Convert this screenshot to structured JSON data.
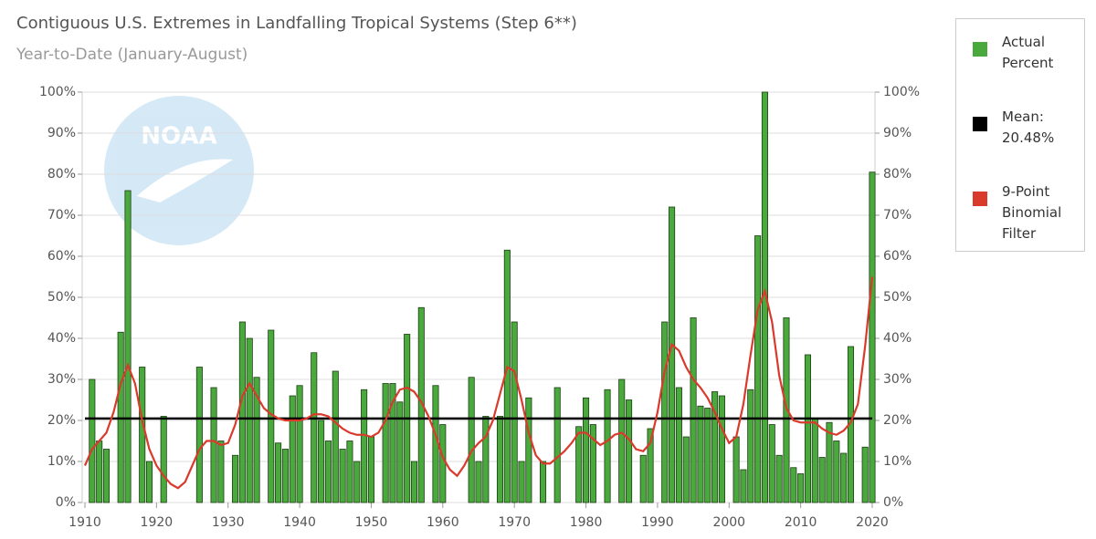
{
  "chart_data": {
    "type": "bar",
    "title": "Contiguous U.S. Extremes in Landfalling Tropical Systems (Step 6**)",
    "subtitle": "Year-to-Date (January-August)",
    "logo_text": "NOAA",
    "x": [
      1910,
      1911,
      1912,
      1913,
      1914,
      1915,
      1916,
      1917,
      1918,
      1919,
      1920,
      1921,
      1922,
      1923,
      1924,
      1925,
      1926,
      1927,
      1928,
      1929,
      1930,
      1931,
      1932,
      1933,
      1934,
      1935,
      1936,
      1937,
      1938,
      1939,
      1940,
      1941,
      1942,
      1943,
      1944,
      1945,
      1946,
      1947,
      1948,
      1949,
      1950,
      1951,
      1952,
      1953,
      1954,
      1955,
      1956,
      1957,
      1958,
      1959,
      1960,
      1961,
      1962,
      1963,
      1964,
      1965,
      1966,
      1967,
      1968,
      1969,
      1970,
      1971,
      1972,
      1973,
      1974,
      1975,
      1976,
      1977,
      1978,
      1979,
      1980,
      1981,
      1982,
      1983,
      1984,
      1985,
      1986,
      1987,
      1988,
      1989,
      1990,
      1991,
      1992,
      1993,
      1994,
      1995,
      1996,
      1997,
      1998,
      1999,
      2000,
      2001,
      2002,
      2003,
      2004,
      2005,
      2006,
      2007,
      2008,
      2009,
      2010,
      2011,
      2012,
      2013,
      2014,
      2015,
      2016,
      2017,
      2018,
      2019,
      2020
    ],
    "series": [
      {
        "name": "Actual Percent",
        "type": "bar",
        "color": "#4aa93c",
        "values": [
          null,
          30,
          15,
          13,
          0,
          41.5,
          76,
          0,
          33,
          10,
          0,
          21,
          0,
          0,
          0,
          0,
          33,
          0,
          28,
          15,
          0,
          11.5,
          44,
          40,
          30.5,
          0,
          42,
          14.5,
          13,
          26,
          28.5,
          0,
          36.5,
          20,
          15,
          32,
          13,
          15,
          10,
          27.5,
          16,
          0,
          29,
          29,
          24.5,
          41,
          10,
          47.5,
          0,
          28.5,
          19,
          0,
          0,
          0,
          30.5,
          10,
          21,
          0,
          21,
          61.5,
          44,
          10,
          25.5,
          0,
          10,
          0,
          28,
          0,
          0,
          18.5,
          25.5,
          19,
          0,
          27.5,
          0,
          30,
          25,
          0,
          11.5,
          18,
          0,
          44,
          72,
          28,
          16,
          45,
          23.5,
          23,
          27,
          26,
          0,
          16,
          8,
          27.5,
          65,
          100,
          19,
          11.5,
          45,
          8.5,
          7,
          36,
          20.5,
          11,
          19.5,
          15,
          12,
          38,
          0,
          13.5,
          80.5
        ]
      },
      {
        "name": "Mean: 20.48%",
        "type": "hline",
        "color": "#000000",
        "value": 20.48
      },
      {
        "name": "9-Point Binomial Filter",
        "type": "line",
        "color": "#d93a2b",
        "values": [
          9,
          13,
          15,
          17,
          22,
          29,
          33.5,
          29,
          20,
          13,
          9,
          6.5,
          4.5,
          3.5,
          5,
          9,
          13,
          15,
          15,
          14,
          14.5,
          19,
          26,
          29,
          26,
          23,
          21.5,
          20.5,
          20,
          20,
          20,
          20.5,
          21.5,
          21.5,
          21,
          19.5,
          18,
          17,
          16.5,
          16.5,
          16,
          17,
          20,
          24.5,
          27.5,
          28,
          27,
          24.5,
          21,
          16.5,
          11,
          8,
          6.5,
          9,
          12.5,
          14.5,
          16,
          20,
          26.5,
          33,
          32,
          25,
          17,
          11.5,
          9.5,
          9.5,
          11,
          12.5,
          14.5,
          17,
          17,
          15.5,
          14,
          15,
          16.5,
          17,
          15.5,
          13,
          12.5,
          14.5,
          22,
          32,
          38.5,
          37,
          33,
          30,
          28,
          25.5,
          22,
          18,
          14.5,
          16,
          24,
          36,
          47,
          51.5,
          44,
          31,
          23,
          20,
          19.5,
          19.5,
          19.5,
          18,
          17,
          16.5,
          17.5,
          19.5,
          24,
          38,
          55
        ]
      }
    ],
    "xlim": [
      1910,
      2020
    ],
    "xticks": [
      1910,
      1920,
      1930,
      1940,
      1950,
      1960,
      1970,
      1980,
      1990,
      2000,
      2010,
      2020
    ],
    "ylim": [
      0,
      100
    ],
    "yticks": [
      {
        "value": 0,
        "label": "0%"
      },
      {
        "value": 10,
        "label": "10%"
      },
      {
        "value": 20,
        "label": "20%"
      },
      {
        "value": 30,
        "label": "30%"
      },
      {
        "value": 40,
        "label": "40%"
      },
      {
        "value": 50,
        "label": "50%"
      },
      {
        "value": 60,
        "label": "60%"
      },
      {
        "value": 70,
        "label": "70%"
      },
      {
        "value": 80,
        "label": "80%"
      },
      {
        "value": 90,
        "label": "90%"
      },
      {
        "value": 100,
        "label": "100%"
      }
    ],
    "y2lim": [
      0,
      100
    ],
    "y2ticks": [
      {
        "value": 0,
        "label": "0%"
      },
      {
        "value": 10,
        "label": "10%"
      },
      {
        "value": 20,
        "label": "20%"
      },
      {
        "value": 30,
        "label": "30%"
      },
      {
        "value": 40,
        "label": "40%"
      },
      {
        "value": 50,
        "label": "50%"
      },
      {
        "value": 60,
        "label": "60%"
      },
      {
        "value": 70,
        "label": "70%"
      },
      {
        "value": 80,
        "label": "80%"
      },
      {
        "value": 90,
        "label": "90%"
      },
      {
        "value": 100,
        "label": "100%"
      }
    ],
    "grid": true,
    "legend": "right"
  }
}
